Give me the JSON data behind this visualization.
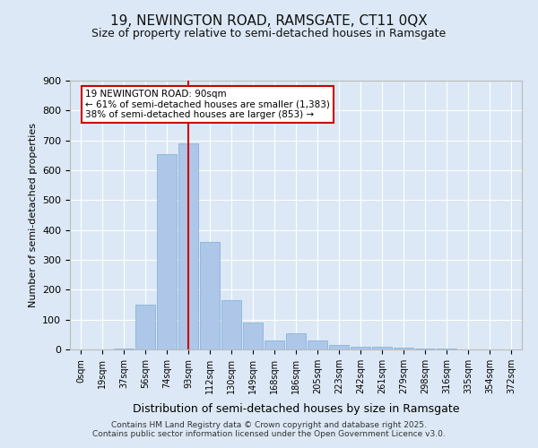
{
  "title_line1": "19, NEWINGTON ROAD, RAMSGATE, CT11 0QX",
  "title_line2": "Size of property relative to semi-detached houses in Ramsgate",
  "xlabel": "Distribution of semi-detached houses by size in Ramsgate",
  "ylabel": "Number of semi-detached properties",
  "bar_labels": [
    "0sqm",
    "19sqm",
    "37sqm",
    "56sqm",
    "74sqm",
    "93sqm",
    "112sqm",
    "130sqm",
    "149sqm",
    "168sqm",
    "186sqm",
    "205sqm",
    "223sqm",
    "242sqm",
    "261sqm",
    "279sqm",
    "298sqm",
    "316sqm",
    "335sqm",
    "354sqm",
    "372sqm"
  ],
  "bar_values": [
    0,
    0,
    2,
    150,
    655,
    690,
    360,
    165,
    90,
    30,
    55,
    30,
    15,
    10,
    8,
    5,
    3,
    2,
    1,
    0,
    0
  ],
  "bar_color": "#aec6e8",
  "bar_edge_color": "#7aafd4",
  "background_color": "#dce8f5",
  "grid_color": "#ffffff",
  "annotation_title": "19 NEWINGTON ROAD: 90sqm",
  "annotation_line1": "← 61% of semi-detached houses are smaller (1,383)",
  "annotation_line2": "38% of semi-detached houses are larger (853) →",
  "annotation_box_color": "#ffffff",
  "annotation_box_edge_color": "#cc0000",
  "vline_color": "#cc0000",
  "vline_x": 5,
  "ylim": [
    0,
    900
  ],
  "yticks": [
    0,
    100,
    200,
    300,
    400,
    500,
    600,
    700,
    800,
    900
  ],
  "footer_line1": "Contains HM Land Registry data © Crown copyright and database right 2025.",
  "footer_line2": "Contains public sector information licensed under the Open Government Licence v3.0."
}
